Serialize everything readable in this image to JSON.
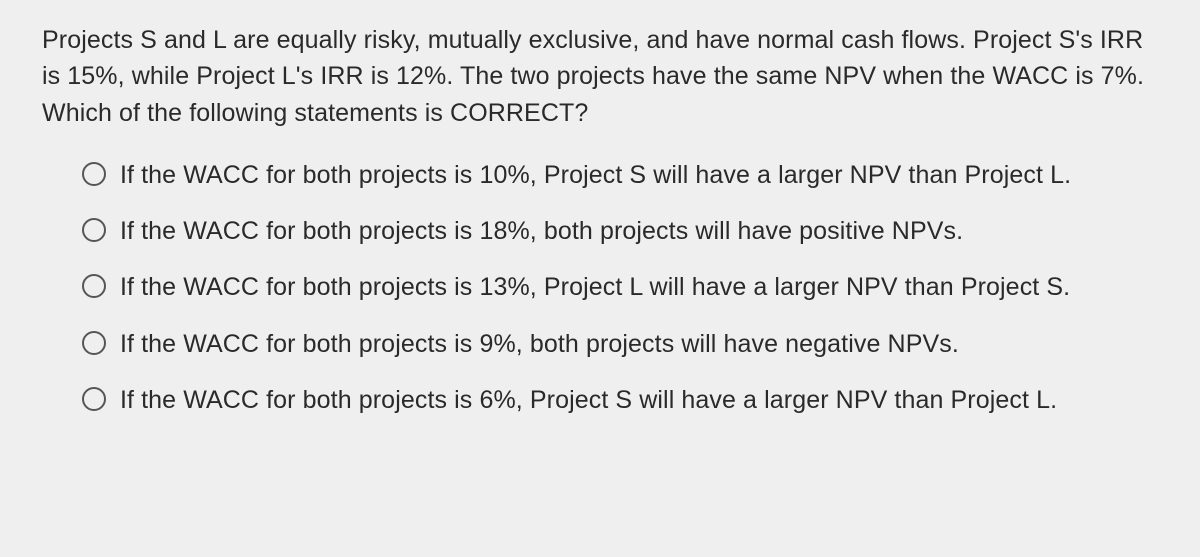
{
  "question": "Projects S and L are equally risky, mutually exclusive, and have normal cash flows. Project S's IRR is 15%, while Project L's IRR is 12%. The two projects have the same NPV when the WACC is 7%. Which of the following statements is CORRECT?",
  "options": [
    {
      "label": "If the WACC for both projects is 10%, Project S will have a larger NPV than Project L."
    },
    {
      "label": "If the WACC for both projects is 18%, both projects will have positive NPVs."
    },
    {
      "label": "If the WACC for both projects is 13%, Project L will have a larger NPV than Project S."
    },
    {
      "label": "If the WACC for both projects is 9%, both projects will have negative NPVs."
    },
    {
      "label": "If the WACC for both projects is 6%, Project S will have a larger NPV than Project L."
    }
  ],
  "style": {
    "background_color": "#eeefee",
    "text_color": "#2a2a2a",
    "radio_border_color": "#555555",
    "question_fontsize": 25,
    "option_fontsize": 25,
    "radio_diameter": 24
  }
}
